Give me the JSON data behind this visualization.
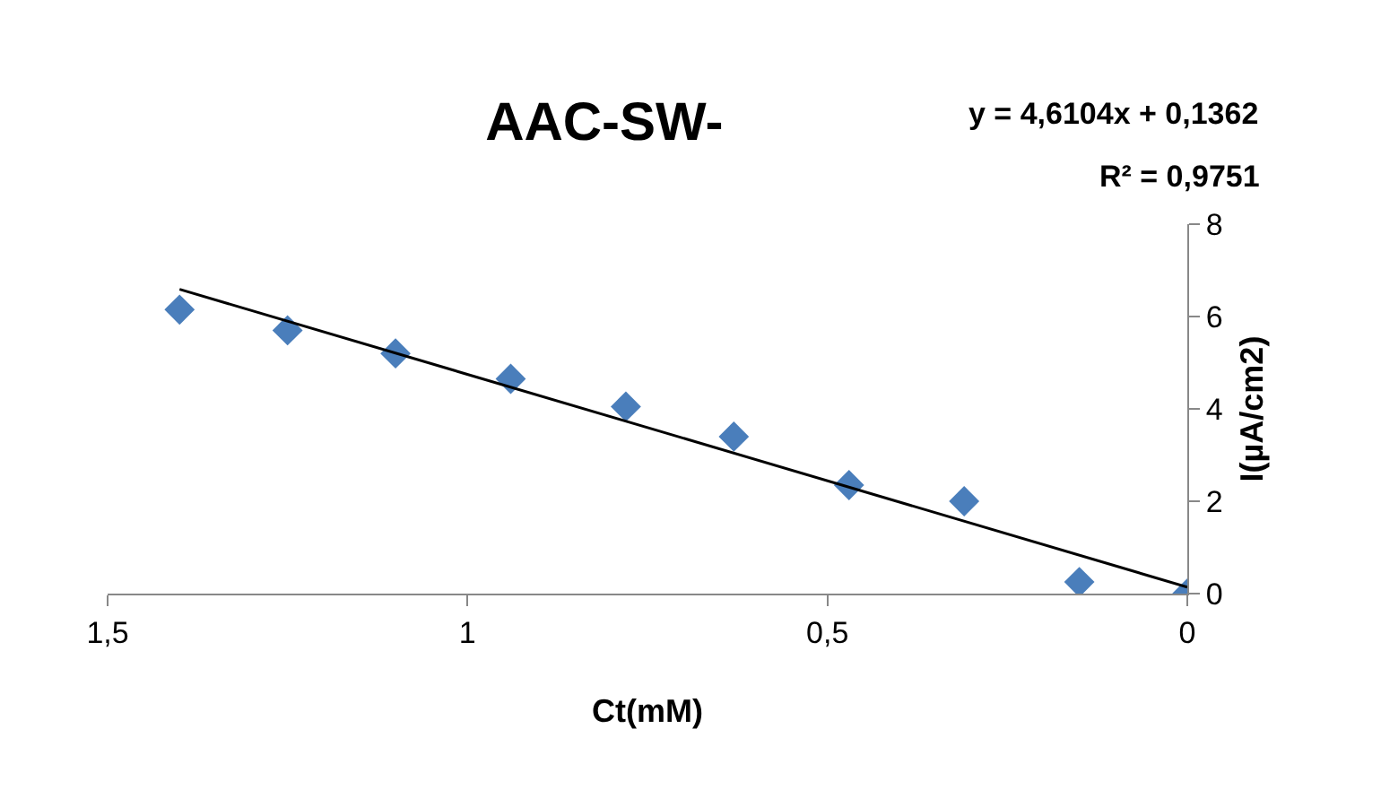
{
  "chart_data": {
    "type": "scatter",
    "title": "AAC-SW-",
    "xlabel": "Ct(mM)",
    "ylabel": "I(µA/cm2)",
    "xlim": [
      1.5,
      0
    ],
    "xticks": [
      {
        "value": 1.5,
        "label": "1,5"
      },
      1,
      {
        "value": 0.5,
        "label": "0,5"
      },
      0
    ],
    "ylim": [
      0,
      8
    ],
    "yticks": [
      0,
      2,
      4,
      6,
      8
    ],
    "grid": false,
    "legend": false,
    "series": [
      {
        "marker": "diamond",
        "color": "#4a7ebb",
        "x": [
          1.4,
          1.25,
          1.1,
          0.94,
          0.78,
          0.63,
          0.47,
          0.31,
          0.15,
          0
        ],
        "values": [
          6.15,
          5.7,
          5.2,
          4.65,
          4.05,
          3.4,
          2.35,
          2.0,
          0.25,
          0
        ]
      },
      {
        "type": "line",
        "marker": "none",
        "color": "#000000",
        "x": [
          0,
          1.4
        ],
        "values": [
          0.14,
          6.59
        ]
      }
    ],
    "annotations": [
      "y = 4,6104x + 0,1362",
      "R² = 0,9751"
    ]
  }
}
